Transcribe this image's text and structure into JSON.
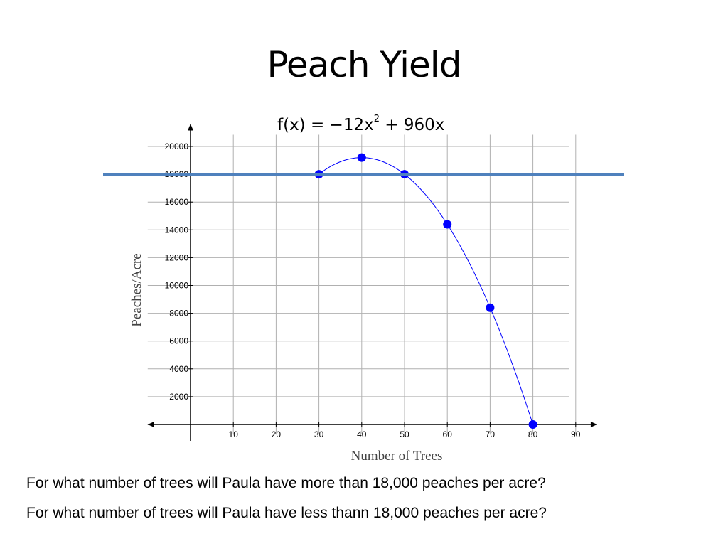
{
  "slide": {
    "title": "Peach Yield",
    "questions": [
      "For what number of trees will Paula have more than 18,000 peaches per acre?",
      "For what number of trees will Paula have less thann 18,000 peaches per acre?"
    ]
  },
  "chart_data": {
    "type": "line",
    "title": "f(x) = −12x² + 960x",
    "equation": {
      "prefix": "f(x) = −12x",
      "exponent": "2",
      "suffix": " + 960x"
    },
    "xlabel": "Number of Trees",
    "ylabel": "Peaches/Acre",
    "xlim": [
      -10,
      95
    ],
    "ylim": [
      -500,
      21000
    ],
    "x_ticks": [
      10,
      20,
      30,
      40,
      50,
      60,
      70,
      80,
      90
    ],
    "y_ticks": [
      2000,
      4000,
      6000,
      8000,
      10000,
      12000,
      14000,
      16000,
      18000,
      20000
    ],
    "grid": true,
    "curve": {
      "a": -12,
      "b": 960,
      "c": 0,
      "x_range": [
        30,
        80
      ],
      "color": "#0000ff"
    },
    "points": [
      {
        "x": 30,
        "y": 18000
      },
      {
        "x": 40,
        "y": 19200
      },
      {
        "x": 50,
        "y": 18000
      },
      {
        "x": 60,
        "y": 14400
      },
      {
        "x": 70,
        "y": 8400
      },
      {
        "x": 80,
        "y": 0
      }
    ],
    "point_color": "#0000ff",
    "reference_line": {
      "y": 18000,
      "color": "#4f81bd"
    }
  }
}
